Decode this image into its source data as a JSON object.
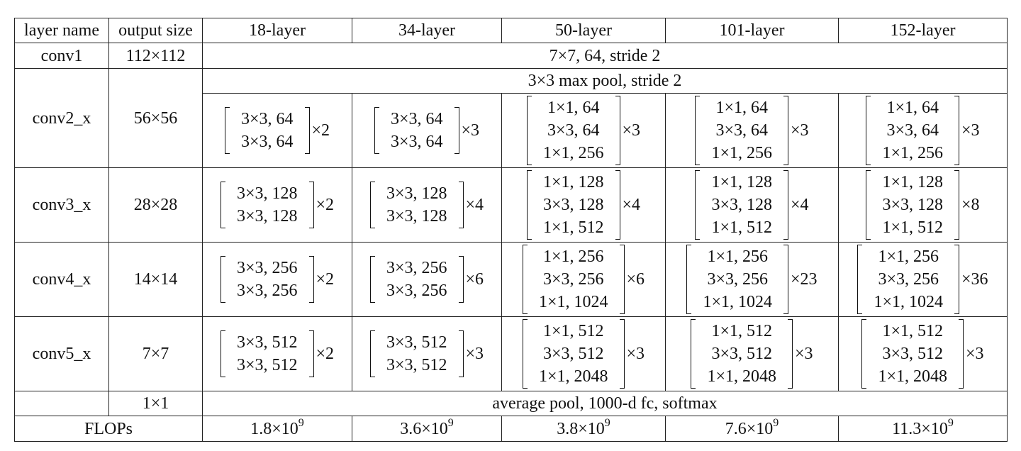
{
  "headers": [
    "layer name",
    "output size",
    "18-layer",
    "34-layer",
    "50-layer",
    "101-layer",
    "152-layer"
  ],
  "conv1": {
    "name": "conv1",
    "size": "112×112",
    "spec": "7×7, 64, stride 2"
  },
  "conv2": {
    "name": "conv2_x",
    "size": "56×56",
    "pool": "3×3 max pool, stride 2",
    "cells": [
      {
        "rows": [
          "3×3, 64",
          "3×3, 64"
        ],
        "mult": "×2"
      },
      {
        "rows": [
          "3×3, 64",
          "3×3, 64"
        ],
        "mult": "×3"
      },
      {
        "rows": [
          "1×1, 64",
          "3×3, 64",
          "1×1, 256"
        ],
        "mult": "×3"
      },
      {
        "rows": [
          "1×1, 64",
          "3×3, 64",
          "1×1, 256"
        ],
        "mult": "×3"
      },
      {
        "rows": [
          "1×1, 64",
          "3×3, 64",
          "1×1, 256"
        ],
        "mult": "×3"
      }
    ]
  },
  "conv3": {
    "name": "conv3_x",
    "size": "28×28",
    "cells": [
      {
        "rows": [
          "3×3, 128",
          "3×3, 128"
        ],
        "mult": "×2"
      },
      {
        "rows": [
          "3×3, 128",
          "3×3, 128"
        ],
        "mult": "×4"
      },
      {
        "rows": [
          "1×1, 128",
          "3×3, 128",
          "1×1, 512"
        ],
        "mult": "×4"
      },
      {
        "rows": [
          "1×1, 128",
          "3×3, 128",
          "1×1, 512"
        ],
        "mult": "×4"
      },
      {
        "rows": [
          "1×1, 128",
          "3×3, 128",
          "1×1, 512"
        ],
        "mult": "×8"
      }
    ]
  },
  "conv4": {
    "name": "conv4_x",
    "size": "14×14",
    "cells": [
      {
        "rows": [
          "3×3, 256",
          "3×3, 256"
        ],
        "mult": "×2"
      },
      {
        "rows": [
          "3×3, 256",
          "3×3, 256"
        ],
        "mult": "×6"
      },
      {
        "rows": [
          "1×1, 256",
          "3×3, 256",
          "1×1, 1024"
        ],
        "mult": "×6"
      },
      {
        "rows": [
          "1×1, 256",
          "3×3, 256",
          "1×1, 1024"
        ],
        "mult": "×23"
      },
      {
        "rows": [
          "1×1, 256",
          "3×3, 256",
          "1×1, 1024"
        ],
        "mult": "×36"
      }
    ]
  },
  "conv5": {
    "name": "conv5_x",
    "size": "7×7",
    "cells": [
      {
        "rows": [
          "3×3, 512",
          "3×3, 512"
        ],
        "mult": "×2"
      },
      {
        "rows": [
          "3×3, 512",
          "3×3, 512"
        ],
        "mult": "×3"
      },
      {
        "rows": [
          "1×1, 512",
          "3×3, 512",
          "1×1, 2048"
        ],
        "mult": "×3"
      },
      {
        "rows": [
          "1×1, 512",
          "3×3, 512",
          "1×1, 2048"
        ],
        "mult": "×3"
      },
      {
        "rows": [
          "1×1, 512",
          "3×3, 512",
          "1×1, 2048"
        ],
        "mult": "×3"
      }
    ]
  },
  "final": {
    "size": "1×1",
    "spec": "average pool, 1000-d fc, softmax"
  },
  "flops": {
    "label": "FLOPs",
    "base": [
      "1.8×10",
      "3.6×10",
      "3.8×10",
      "7.6×10",
      "11.3×10"
    ],
    "exp": [
      "9",
      "9",
      "9",
      "9",
      "9"
    ]
  }
}
